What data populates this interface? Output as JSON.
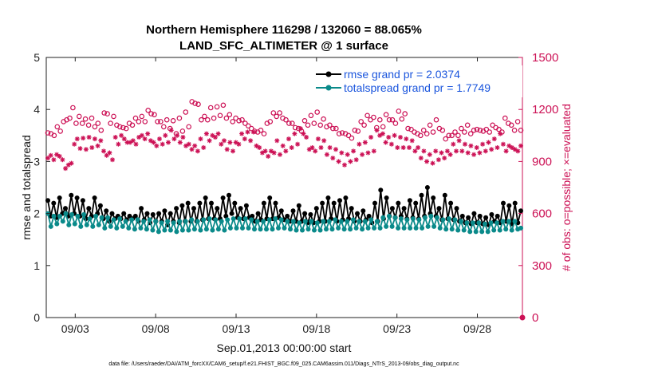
{
  "chart_data": {
    "type": "line",
    "title": "Northern Hemisphere 116298 / 132060 = 88.065%",
    "subtitle": "LAND_SFC_ALTIMETER @ 1 surface",
    "xlabel": "Sep.01,2013 00:00:00 start",
    "ylabel_left": "rmse and totalspread",
    "ylabel_right": "# of obs: o=possible; ×=evaluated",
    "footer": "data file: /Users/raeder/DAI/ATM_forcXX/CAM6_setup/f.e21.FHIST_BGC.f09_025.CAM6assim.011/Diags_NTrS_2013-09/obs_diag_output.nc",
    "x_range_days": [
      1.2,
      30.8
    ],
    "x_tick_labels": [
      "09/03",
      "09/08",
      "09/13",
      "09/18",
      "09/23",
      "09/28"
    ],
    "x_tick_days": [
      3,
      8,
      13,
      18,
      23,
      28
    ],
    "ylim_left": [
      0,
      5
    ],
    "yticks_left": [
      "0",
      "1",
      "2",
      "3",
      "4",
      "5"
    ],
    "ylim_right": [
      0,
      1500
    ],
    "yticks_right": [
      "0",
      "300",
      "600",
      "900",
      "1200",
      "1500"
    ],
    "legend_placement": "top-right",
    "colors": {
      "rmse": "#000000",
      "spread": "#0a8a8a",
      "obs": "#cc1155"
    },
    "series": [
      {
        "name": "rmse grand pr = 2.0374",
        "axis": "left",
        "values": [
          2.25,
          1.95,
          2.2,
          1.92,
          2.3,
          2.0,
          2.1,
          1.95,
          2.35,
          2.0,
          2.3,
          1.95,
          2.25,
          1.9,
          2.1,
          1.95,
          2.3,
          2.0,
          2.15,
          1.9,
          2.05,
          1.85,
          2.0,
          1.9,
          1.95,
          1.9,
          2.0,
          1.88,
          1.95,
          1.9,
          1.95,
          1.85,
          2.1,
          1.88,
          2.0,
          1.82,
          1.98,
          1.85,
          2.0,
          1.85,
          2.05,
          1.78,
          2.0,
          1.85,
          2.1,
          1.82,
          2.15,
          1.85,
          2.2,
          1.85,
          2.1,
          1.85,
          2.2,
          1.88,
          2.3,
          1.9,
          2.2,
          1.9,
          2.1,
          1.9,
          2.3,
          1.95,
          2.35,
          2.0,
          2.2,
          1.92,
          2.1,
          1.9,
          2.15,
          1.92,
          1.95,
          1.85,
          2.0,
          1.88,
          2.2,
          1.9,
          2.3,
          1.9,
          2.2,
          1.92,
          2.05,
          1.88,
          1.95,
          1.85,
          2.05,
          1.85,
          2.15,
          1.85,
          2.0,
          1.82,
          1.98,
          1.82,
          2.1,
          1.85,
          2.2,
          1.85,
          2.3,
          1.9,
          2.2,
          1.85,
          2.25,
          1.88,
          2.3,
          1.9,
          2.1,
          1.85,
          2.0,
          1.85,
          2.05,
          1.88,
          1.95,
          1.82,
          2.2,
          1.85,
          2.45,
          1.9,
          2.3,
          1.95,
          2.1,
          1.92,
          2.2,
          1.95,
          2.1,
          1.9,
          2.25,
          1.92,
          2.2,
          1.9,
          2.35,
          1.95,
          2.5,
          2.0,
          2.3,
          1.95,
          2.1,
          1.88,
          2.35,
          1.9,
          2.2,
          1.88,
          2.1,
          1.85,
          1.95,
          1.82,
          1.92,
          1.8,
          2.0,
          1.82,
          1.95,
          1.8,
          1.92,
          1.78,
          1.98,
          1.85,
          1.95,
          1.82,
          2.2,
          1.85,
          2.15,
          1.8,
          2.2,
          1.82,
          2.05
        ]
      },
      {
        "name": "totalspread grand pr = 1.7749",
        "axis": "left",
        "values": [
          2.0,
          1.75,
          1.95,
          1.8,
          1.95,
          1.85,
          2.0,
          1.78,
          1.98,
          1.8,
          1.95,
          1.75,
          1.98,
          1.78,
          1.9,
          1.75,
          1.95,
          1.78,
          1.92,
          1.72,
          1.92,
          1.75,
          1.88,
          1.72,
          1.9,
          1.75,
          1.85,
          1.72,
          1.88,
          1.7,
          1.88,
          1.72,
          1.85,
          1.7,
          1.88,
          1.68,
          1.85,
          1.65,
          1.82,
          1.68,
          1.85,
          1.68,
          1.82,
          1.65,
          1.85,
          1.68,
          1.85,
          1.68,
          1.88,
          1.7,
          1.85,
          1.68,
          1.88,
          1.7,
          1.9,
          1.68,
          1.88,
          1.7,
          1.85,
          1.68,
          1.88,
          1.72,
          1.9,
          1.72,
          1.9,
          1.72,
          1.9,
          1.72,
          1.88,
          1.7,
          1.85,
          1.7,
          1.85,
          1.7,
          1.88,
          1.7,
          1.9,
          1.72,
          1.88,
          1.72,
          1.85,
          1.7,
          1.85,
          1.68,
          1.82,
          1.68,
          1.85,
          1.7,
          1.85,
          1.68,
          1.82,
          1.68,
          1.85,
          1.7,
          1.85,
          1.7,
          1.88,
          1.72,
          1.85,
          1.7,
          1.85,
          1.7,
          1.88,
          1.72,
          1.85,
          1.7,
          1.85,
          1.72,
          1.88,
          1.72,
          1.85,
          1.72,
          1.92,
          1.75,
          1.95,
          1.75,
          1.92,
          1.72,
          1.9,
          1.72,
          1.88,
          1.72,
          1.9,
          1.72,
          1.88,
          1.72,
          1.92,
          1.75,
          1.95,
          1.75,
          1.92,
          1.72,
          1.88,
          1.7,
          1.9,
          1.7,
          1.88,
          1.68,
          1.85,
          1.68,
          1.82,
          1.65,
          1.82,
          1.65,
          1.82,
          1.65,
          1.8,
          1.65,
          1.82,
          1.68,
          1.82,
          1.68,
          1.85,
          1.7,
          1.85,
          1.68,
          1.85,
          1.7,
          1.72
        ]
      },
      {
        "name": "possible",
        "axis": "right",
        "marker": "circle",
        "values": [
          1065,
          1060,
          1050,
          1100,
          1075,
          1130,
          1140,
          1150,
          1210,
          1120,
          1160,
          1120,
          1145,
          1110,
          1150,
          1100,
          1120,
          1080,
          1180,
          1175,
          1120,
          1160,
          1110,
          1100,
          1095,
          1090,
          1120,
          1110,
          1150,
          1130,
          1160,
          1130,
          1195,
          1175,
          1170,
          1130,
          1130,
          1100,
          1140,
          1090,
          1135,
          1060,
          1150,
          1075,
          1185,
          1100,
          1245,
          1235,
          1230,
          1140,
          1160,
          1140,
          1210,
          1150,
          1215,
          1165,
          1225,
          1150,
          1170,
          1130,
          1150,
          1135,
          1140,
          1120,
          1105,
          1090,
          1075,
          1070,
          1080,
          1060,
          1120,
          1130,
          1180,
          1160,
          1180,
          1150,
          1140,
          1120,
          1120,
          1095,
          1090,
          1075,
          1135,
          1110,
          1165,
          1120,
          1185,
          1110,
          1145,
          1100,
          1110,
          1090,
          1090,
          1060,
          1065,
          1060,
          1050,
          1035,
          1080,
          1075,
          1130,
          1110,
          1165,
          1140,
          1155,
          1095,
          1140,
          1100,
          1170,
          1140,
          1140,
          1120,
          1190,
          1145,
          1175,
          1090,
          1085,
          1070,
          1060,
          1050,
          1080,
          1060,
          1110,
          1070,
          1140,
          1090,
          1080,
          1030,
          1050,
          1050,
          1070,
          1050,
          1090,
          1070,
          1110,
          1060,
          1080,
          1085,
          1080,
          1075,
          1085,
          1070,
          1110,
          1095,
          1085,
          1070,
          1150,
          1120,
          1110,
          1080,
          1130,
          1080
        ]
      },
      {
        "name": "evaluated",
        "axis": "right",
        "marker": "x",
        "values": [
          920,
          935,
          910,
          940,
          930,
          910,
          860,
          880,
          890,
          1000,
          1030,
          975,
          1035,
          970,
          1040,
          980,
          1030,
          990,
          1020,
          960,
          935,
          950,
          910,
          1040,
          1000,
          1050,
          1030,
          1010,
          1010,
          1020,
          1000,
          1040,
          1050,
          1030,
          1060,
          1020,
          1010,
          990,
          1030,
          1000,
          1050,
          1010,
          1080,
          1030,
          1050,
          1010,
          1040,
          990,
          1000,
          970,
          990,
          960,
          1030,
          980,
          1060,
          1020,
          1050,
          1040,
          1060,
          1000,
          1020,
          970,
          1010,
          960,
          1010,
          1000,
          1060,
          1030,
          1070,
          1020,
          1070,
          990,
          980,
          950,
          960,
          930,
          960,
          950,
          1020,
          940,
          990,
          960,
          1030,
          980,
          1060,
          1000,
          1090,
          1060,
          1040,
          970,
          980,
          960,
          1030,
          980,
          1020,
          940,
          980,
          920,
          970,
          900,
          950,
          880,
          940,
          900,
          960,
          910,
          1000,
          940,
          1010,
          950,
          1040,
          960,
          1080,
          1050,
          1060,
          1010,
          1040,
          1000,
          1050,
          980,
          1040,
          980,
          1030,
          980,
          1020,
          960,
          980,
          920,
          960,
          900,
          940,
          890,
          960,
          910,
          950,
          920,
          960,
          940,
          1000,
          960,
          1020,
          960,
          1000,
          950,
          990,
          940,
          980,
          950,
          1000,
          960,
          1010,
          970,
          1030,
          980,
          1060,
          1000,
          960,
          990,
          980,
          970,
          960,
          990
        ]
      }
    ]
  }
}
